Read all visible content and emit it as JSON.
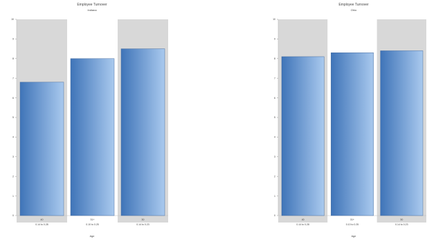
{
  "chart_data": [
    {
      "type": "bar",
      "title": "Employee Turnover",
      "subtitle": "Indiana",
      "xlabel": "Age",
      "ylim": [
        0,
        10
      ],
      "yticks": [
        "0",
        "1",
        "2",
        "3",
        "4",
        "5",
        "6",
        "7",
        "8",
        "9",
        "10"
      ],
      "categories": [
        "40",
        "31+",
        "30"
      ],
      "category_sublabels": [
        "0.14 to 0.28",
        "0.10 to 0.25",
        "0.14 to 0.23"
      ],
      "values": [
        6.8,
        8.0,
        8.5
      ],
      "band_colors": [
        "#d8d8d8",
        "#ffffff",
        "#d8d8d8"
      ],
      "bar_gradient": [
        "#3f74b8",
        "#a9c9ee"
      ],
      "grid": false
    },
    {
      "type": "bar",
      "title": "Employee Turnover",
      "subtitle": "Ohio",
      "xlabel": "Age",
      "ylim": [
        0,
        10
      ],
      "yticks": [
        "0",
        "1",
        "2",
        "3",
        "4",
        "5",
        "6",
        "7",
        "8",
        "9",
        "10"
      ],
      "categories": [
        "40",
        "31+",
        "30"
      ],
      "category_sublabels": [
        "0.14 to 0.28",
        "0.10 to 0.25",
        "0.14 to 0.23"
      ],
      "values": [
        8.1,
        8.3,
        8.4
      ],
      "band_colors": [
        "#d8d8d8",
        "#ffffff",
        "#d8d8d8"
      ],
      "bar_gradient": [
        "#3f74b8",
        "#a9c9ee"
      ],
      "grid": false
    }
  ]
}
